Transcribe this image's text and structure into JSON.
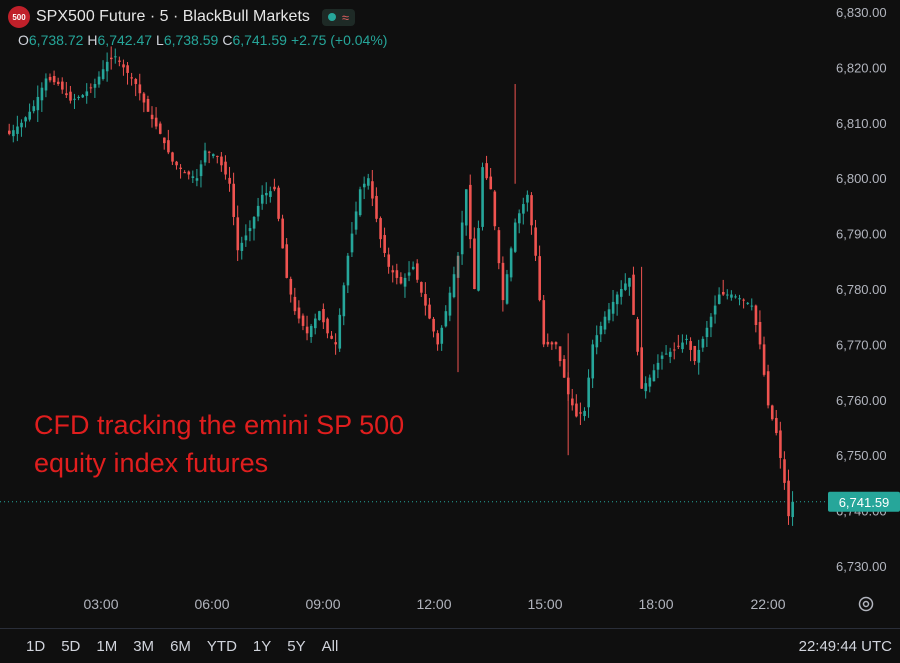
{
  "header": {
    "badge": "500",
    "title": "SPX500 Future · 5 · BlackBull Markets",
    "status_wave": "≈"
  },
  "ohlc": {
    "o_label": "O",
    "o": "6,738.72",
    "h_label": "H",
    "h": "6,742.47",
    "l_label": "L",
    "l": "6,738.59",
    "c_label": "C",
    "c": "6,741.59",
    "change": "+2.75 (+0.04%)"
  },
  "annotation": {
    "line1": "CFD tracking the emini SP 500",
    "line2": "equity index futures"
  },
  "price_axis": {
    "ticks": [
      "6,830.00",
      "6,820.00",
      "6,810.00",
      "6,800.00",
      "6,790.00",
      "6,780.00",
      "6,770.00",
      "6,760.00",
      "6,750.00",
      "6,740.00",
      "6,730.00"
    ],
    "last_price": "6,741.59"
  },
  "time_axis": {
    "ticks": [
      "03:00",
      "06:00",
      "09:00",
      "12:00",
      "15:00",
      "18:00",
      "22:00"
    ]
  },
  "bottom_bar": {
    "ranges": [
      "1D",
      "5D",
      "1M",
      "3M",
      "6M",
      "YTD",
      "1Y",
      "5Y",
      "All"
    ],
    "clock": "22:49:44 UTC"
  },
  "colors": {
    "up": "#26a69a",
    "down": "#ef5350",
    "background": "#0f0f0f",
    "annotation": "#e01e1e",
    "last_price_tag": "#26a69a"
  },
  "chart_data": {
    "type": "candlestick",
    "title": "SPX500 Future · 5 · BlackBull Markets",
    "x_ticks": [
      "03:00",
      "06:00",
      "09:00",
      "12:00",
      "15:00",
      "18:00",
      "22:00"
    ],
    "y_range": [
      6726,
      6832
    ],
    "last_price": 6741.59,
    "close_path": [
      [
        0,
        6808
      ],
      [
        3,
        6810
      ],
      [
        6,
        6813
      ],
      [
        9,
        6818
      ],
      [
        12,
        6817
      ],
      [
        15,
        6814
      ],
      [
        18,
        6815
      ],
      [
        21,
        6817
      ],
      [
        24,
        6821
      ],
      [
        26,
        6822
      ],
      [
        28,
        6820
      ],
      [
        31,
        6817
      ],
      [
        34,
        6812
      ],
      [
        37,
        6808
      ],
      [
        40,
        6803
      ],
      [
        43,
        6801
      ],
      [
        46,
        6800
      ],
      [
        48,
        6805
      ],
      [
        51,
        6804
      ],
      [
        54,
        6799
      ],
      [
        56,
        6787
      ],
      [
        59,
        6791
      ],
      [
        62,
        6797
      ],
      [
        65,
        6798
      ],
      [
        68,
        6782
      ],
      [
        70,
        6776
      ],
      [
        73,
        6772
      ],
      [
        76,
        6776
      ],
      [
        78,
        6772
      ],
      [
        80,
        6770
      ],
      [
        83,
        6786
      ],
      [
        86,
        6798
      ],
      [
        88,
        6800
      ],
      [
        91,
        6789
      ],
      [
        93,
        6784
      ],
      [
        96,
        6781
      ],
      [
        99,
        6784
      ],
      [
        102,
        6777
      ],
      [
        105,
        6770
      ],
      [
        107,
        6776
      ],
      [
        110,
        6786
      ],
      [
        112,
        6798
      ],
      [
        114,
        6780
      ],
      [
        116,
        6802
      ],
      [
        118,
        6798
      ],
      [
        121,
        6778
      ],
      [
        124,
        6792
      ],
      [
        127,
        6797
      ],
      [
        129,
        6786
      ],
      [
        131,
        6770
      ],
      [
        134,
        6770
      ],
      [
        137,
        6761
      ],
      [
        139,
        6757
      ],
      [
        141,
        6758
      ],
      [
        143,
        6770
      ],
      [
        146,
        6775
      ],
      [
        149,
        6779
      ],
      [
        152,
        6782
      ],
      [
        155,
        6762
      ],
      [
        157,
        6764
      ],
      [
        160,
        6768
      ],
      [
        163,
        6769
      ],
      [
        166,
        6771
      ],
      [
        168,
        6767
      ],
      [
        171,
        6773
      ],
      [
        174,
        6779
      ],
      [
        177,
        6779
      ],
      [
        180,
        6778
      ],
      [
        182,
        6777
      ],
      [
        184,
        6770
      ],
      [
        186,
        6759
      ],
      [
        188,
        6754
      ],
      [
        190,
        6745
      ],
      [
        191,
        6739
      ],
      [
        192,
        6741.59
      ]
    ]
  }
}
